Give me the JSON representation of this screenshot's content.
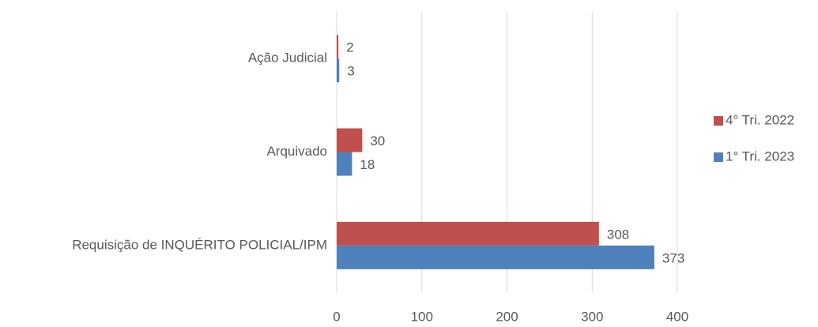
{
  "chart_data": {
    "type": "bar",
    "orientation": "horizontal",
    "categories": [
      "Ação Judicial",
      "Arquivado",
      "Requisição de INQUÉRITO POLICIAL/IPM"
    ],
    "series": [
      {
        "name": "4° Tri. 2022",
        "color": "#c0504d",
        "values": [
          2,
          30,
          308
        ]
      },
      {
        "name": "1° Tri. 2023",
        "color": "#4f81bd",
        "values": [
          3,
          18,
          373
        ]
      }
    ],
    "xlim": [
      0,
      400
    ],
    "xticks": [
      0,
      100,
      200,
      300,
      400
    ],
    "grid": true,
    "legend": "right",
    "data_labels": true
  }
}
